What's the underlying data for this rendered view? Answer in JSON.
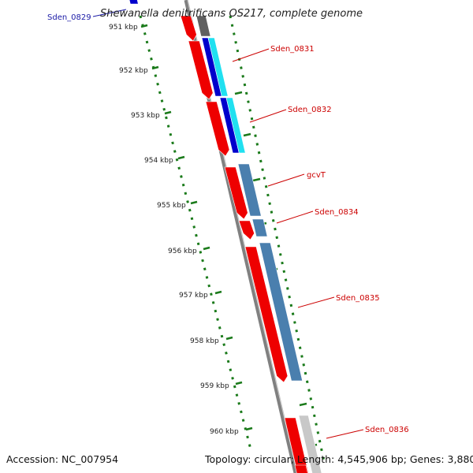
{
  "title": "Shewanella denitrificans OS217, complete genome",
  "footer": {
    "accession": "Accession: NC_007954",
    "summary": "Topology: circular; Length: 4,545,906 bp; Genes: 3,880"
  },
  "scale": {
    "unit": "kbp",
    "ticks": [
      "951 kbp",
      "952 kbp",
      "953 kbp",
      "954 kbp",
      "955 kbp",
      "956 kbp",
      "957 kbp",
      "958 kbp",
      "959 kbp",
      "960 kbp"
    ]
  },
  "gene_labels": [
    "Sden_0829",
    "Sden_0831",
    "Sden_0832",
    "gcvT",
    "Sden_0834",
    "Sden_0835",
    "Sden_0836"
  ],
  "colors": {
    "gene_label_top": "#1a1aa6",
    "gene_label": "#cc0000",
    "cds": "#ee0000",
    "feature_steelblue": "#4a7fae",
    "feature_blue": "#0000cc",
    "feature_cyan": "#20e0f0",
    "backbone": "#808080",
    "scale_dots": "#1a7a1a"
  }
}
